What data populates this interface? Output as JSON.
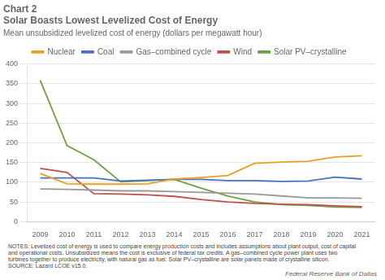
{
  "chart_data": {
    "type": "line",
    "title": [
      "Chart 2",
      "Solar Boasts Lowest Levelized Cost of Energy"
    ],
    "subtitle": "Mean unsubsidized levelized cost of energy (dollars per megawatt hour)",
    "x": [
      2009,
      2010,
      2011,
      2012,
      2013,
      2014,
      2015,
      2016,
      2017,
      2018,
      2019,
      2020,
      2021
    ],
    "series": [
      {
        "name": "Nuclear",
        "color": "#e8a020",
        "values": [
          122,
          96,
          95,
          95,
          96,
          108,
          112,
          117,
          148,
          151,
          153,
          164,
          167
        ]
      },
      {
        "name": "Coal",
        "color": "#4472c4",
        "values": [
          111,
          111,
          111,
          103,
          105,
          107,
          107,
          104,
          104,
          102,
          103,
          113,
          108
        ]
      },
      {
        "name": "Gas–combined cycle",
        "color": "#999999",
        "values": [
          83,
          82,
          80,
          78,
          78,
          76,
          74,
          72,
          70,
          65,
          60,
          60,
          59
        ]
      },
      {
        "name": "Wind",
        "color": "#c0504d",
        "values": [
          135,
          125,
          71,
          70,
          68,
          64,
          56,
          50,
          46,
          44,
          43,
          40,
          38
        ]
      },
      {
        "name": "Solar PV–crystalline",
        "color": "#70a040",
        "values": [
          359,
          193,
          157,
          101,
          104,
          107,
          85,
          65,
          50,
          43,
          41,
          37,
          36
        ]
      }
    ],
    "xlim": [
      2008.5,
      2021.5
    ],
    "xticks": [
      2009,
      2010,
      2011,
      2012,
      2013,
      2014,
      2015,
      2016,
      2017,
      2018,
      2019,
      2020,
      2021
    ],
    "ylim": [
      0,
      400
    ],
    "yticks": [
      0,
      50,
      100,
      150,
      200,
      250,
      300,
      350,
      400
    ],
    "grid": "y",
    "legend": "top",
    "annotations": [
      "NOTES: Levelized cost of energy is used to compare energy production costs and includes assumptions about plant output, cost of capital",
      "and operational costs. Unsubsidized means the cost is exclusive of federal tax credits. A gas–combined cycle power plant uses two",
      "turbines together to produce electricity, with natural gas as fuel. Solar PV–crystalline are solar panels made of crystalline silicon.",
      "SOURCE: Lazard LCOE v15.0.",
      "Federal Reserve Bank of Dallas"
    ]
  }
}
